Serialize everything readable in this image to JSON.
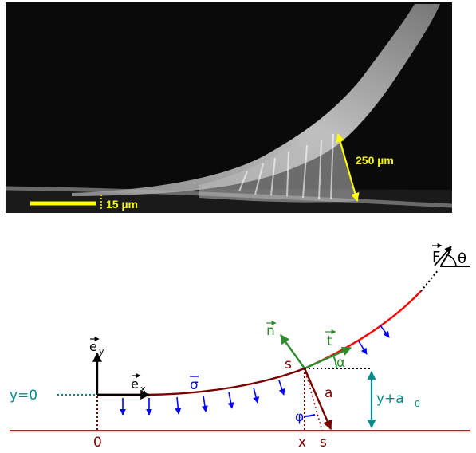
{
  "photo": {
    "scale_bar_horizontal": "15 µm",
    "scale_bar_diagonal": "250 µm",
    "scale_bar_color": "#ffff00"
  },
  "schematic": {
    "unit_vector_y": "e",
    "unit_vector_y_sub": "y",
    "unit_vector_x": "e",
    "unit_vector_x_sub": "x",
    "baseline_label": "y=0",
    "origin_label": "0",
    "stress_label": "σ",
    "normal_label": "n",
    "tangent_label": "t",
    "point_s": "s",
    "angle_alpha": "α",
    "force_label": "F",
    "force_angle": "θ",
    "height_label": "y+a",
    "height_sub": "0",
    "length_a": "a",
    "angle_phi": "φ",
    "x_label": "x",
    "s_bar_label": "s",
    "colors": {
      "free_fiber": "#ff0000",
      "adhered_fiber": "#7a0000",
      "traction_arrows": "#0000ff",
      "frame_vectors": "#2e8b2e",
      "height_annotation": "#008b8b",
      "axes": "#000000"
    }
  }
}
